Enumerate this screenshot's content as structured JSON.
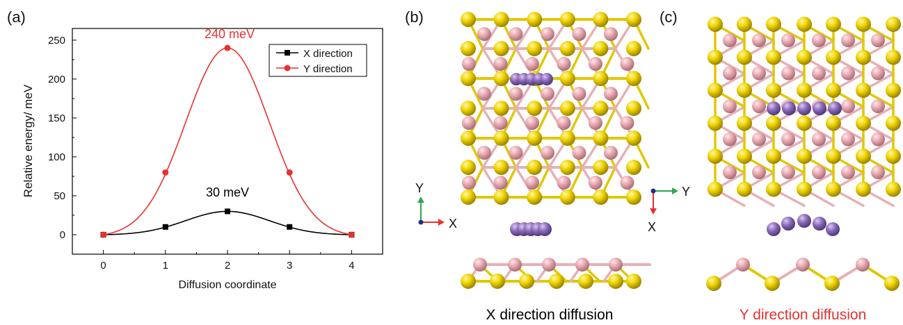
{
  "panels": {
    "a": "(a)",
    "b": "(b)",
    "c": "(c)"
  },
  "chart_data": {
    "type": "line",
    "x": [
      0,
      1,
      2,
      3,
      4
    ],
    "series": [
      {
        "name": "X direction",
        "values": [
          0,
          10,
          30,
          10,
          0
        ],
        "color": "#000000",
        "marker": "square"
      },
      {
        "name": "Y direction",
        "values": [
          0,
          80,
          240,
          80,
          0
        ],
        "color": "#e8312f",
        "marker": "circle"
      }
    ],
    "annotations": [
      {
        "text": "240 meV",
        "color": "#e8312f"
      },
      {
        "text": "30 meV",
        "color": "#000000"
      }
    ],
    "xlabel": "Diffusion coordinate",
    "ylabel": "Relative energy/ meV",
    "xlim": [
      -0.5,
      4.5
    ],
    "ylim": [
      -25,
      265
    ],
    "xticks": [
      0,
      1,
      2,
      3,
      4
    ],
    "yticks": [
      0,
      50,
      100,
      150,
      200,
      250
    ],
    "grid": false,
    "legend_position": "top-right"
  },
  "structures": {
    "b": {
      "axis_vertical": "Y",
      "axis_horizontal": "X",
      "caption": "X direction diffusion",
      "caption_color": "#000000"
    },
    "c": {
      "axis_horizontal": "Y",
      "axis_vertical": "X",
      "caption": "Y direction diffusion",
      "caption_color": "#e8312f"
    }
  },
  "colors": {
    "yellow_atom": "#f2d600",
    "pink_atom": "#e8a6ae",
    "purple_atom": "#8a68b8",
    "axis_red": "#e8312f",
    "axis_green": "#2fa84f",
    "axis_blue": "#1f2f8a"
  }
}
